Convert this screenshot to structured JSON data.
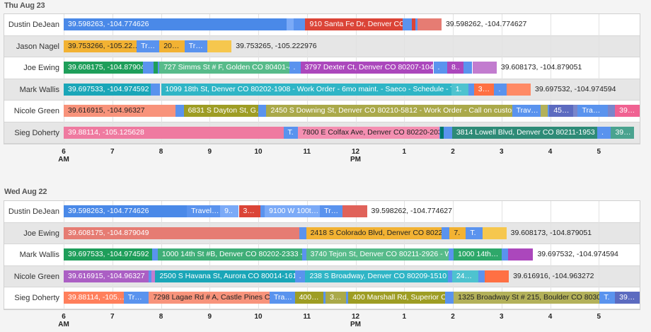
{
  "chart_data": [
    {
      "type": "timeline",
      "title": "Thu Aug 23",
      "x_ticks": [
        {
          "h": 6,
          "label": "6",
          "sub": "AM"
        },
        {
          "h": 7,
          "label": "7"
        },
        {
          "h": 8,
          "label": "8"
        },
        {
          "h": 9,
          "label": "9"
        },
        {
          "h": 10,
          "label": "10"
        },
        {
          "h": 11,
          "label": "11"
        },
        {
          "h": 12,
          "label": "12",
          "sub": "PM"
        },
        {
          "h": 13,
          "label": "1"
        },
        {
          "h": 14,
          "label": "2"
        },
        {
          "h": 15,
          "label": "3"
        },
        {
          "h": 16,
          "label": "4"
        },
        {
          "h": 17,
          "label": "5"
        }
      ],
      "rows": [
        {
          "name": "Dustin DeJean",
          "end_label": "39.598262, -104.774627",
          "segments": [
            [
              "06:00",
              "10:35",
              "#4a89e8",
              "39.598263, -104.774626"
            ],
            [
              "10:35",
              "10:44",
              "#7baaf7",
              ""
            ],
            [
              "10:44",
              "10:58",
              "#5a93ee",
              ""
            ],
            [
              "10:58",
              "12:58",
              "#db4437",
              "910 Santa Fe Dr, Denver CO…"
            ],
            [
              "12:58",
              "13:09",
              "#5a93ee",
              ""
            ],
            [
              "13:09",
              "13:14",
              "#db4437",
              ""
            ],
            [
              "13:14",
              "13:16",
              "#5a93ee",
              ""
            ],
            [
              "13:16",
              "13:46",
              "#e67c73",
              ""
            ]
          ]
        },
        {
          "name": "Jason Nagel",
          "end_label": "39.753265, -105.222976",
          "segments": [
            [
              "06:00",
              "07:30",
              "#f2b233",
              "39.753266, -105.22…"
            ],
            [
              "07:30",
              "07:58",
              "#5a93ee",
              "Tr…"
            ],
            [
              "07:58",
              "08:29",
              "#f2b233",
              "20…"
            ],
            [
              "08:29",
              "08:57",
              "#5a93ee",
              "Tr…"
            ],
            [
              "08:57",
              "09:27",
              "#f6c74e",
              ""
            ]
          ]
        },
        {
          "name": "Joe Ewing",
          "end_label": "39.608173, -104.879051",
          "segments": [
            [
              "06:00",
              "07:38",
              "#1e9e5a",
              "39.608175, -104.879049"
            ],
            [
              "07:38",
              "07:51",
              "#5a93ee",
              ""
            ],
            [
              "07:51",
              "07:56",
              "#1e9e5a",
              ""
            ],
            [
              "07:56",
              "07:58",
              "#5a93ee",
              ""
            ],
            [
              "07:58",
              "10:38",
              "#57bb8a",
              "727 Simms St # F, Golden CO 80401-47…"
            ],
            [
              "10:38",
              "10:52",
              "#5a93ee",
              "."
            ],
            [
              "10:52",
              "13:36",
              "#ab47bc",
              "3797 Dexter Ct, Denver CO 80207-1049 -…"
            ],
            [
              "13:36",
              "13:53",
              "#5a93ee",
              "."
            ],
            [
              "13:53",
              "14:13",
              "#ab47bc",
              "8.."
            ],
            [
              "14:13",
              "14:24",
              "#5a93ee",
              ""
            ],
            [
              "14:24",
              "14:54",
              "#c27ccf",
              ""
            ]
          ]
        },
        {
          "name": "Mark Wallis",
          "end_label": "39.697532, -104.974594",
          "segments": [
            [
              "06:00",
              "07:47",
              "#1aa6b8",
              "39.697533, -104.974592"
            ],
            [
              "07:47",
              "07:59",
              "#5a93ee",
              ""
            ],
            [
              "08:00",
              "13:58",
              "#2fb5c6",
              "1099 18th St, Denver CO 80202-1908 - Work Order - 6mo maint. - Saeco - Schedule - Thu Aug 2…"
            ],
            [
              "13:58",
              "14:19",
              "#4ec3cf",
              "1."
            ],
            [
              "14:19",
              "14:26",
              "#5a93ee",
              ""
            ],
            [
              "14:26",
              "14:51",
              "#ff7043",
              "3…"
            ],
            [
              "14:51",
              "15:06",
              "#5a93ee",
              "."
            ],
            [
              "15:06",
              "15:36",
              "#ff8a65",
              ""
            ]
          ]
        },
        {
          "name": "Nicole Green",
          "end_label": "",
          "segments": [
            [
              "06:00",
              "08:18",
              "#f8937b",
              "39.616915, -104.96327"
            ],
            [
              "08:18",
              "08:28",
              "#5a93ee",
              ""
            ],
            [
              "08:28",
              "10:00",
              "#9e9d24",
              "6831 S Dayton St, G…"
            ],
            [
              "10:00",
              "10:10",
              "#5a93ee",
              ""
            ],
            [
              "10:10",
              "15:13",
              "#aaa94a",
              "2450 S Downing St, Denver CO 80210-5812 - Work Order - Call on customer - Of…"
            ],
            [
              "15:13",
              "15:48",
              "#5a93ee",
              "Trav…"
            ],
            [
              "15:48",
              "15:57",
              "#b3b15a",
              ""
            ],
            [
              "15:57",
              "15:59",
              "#5a93ee",
              ""
            ],
            [
              "15:59",
              "16:28",
              "#5c6bc0",
              "45…"
            ],
            [
              "16:28",
              "16:34",
              "#7986cb",
              ""
            ],
            [
              "16:34",
              "17:11",
              "#5a93ee",
              "Tra…"
            ],
            [
              "17:11",
              "17:20",
              "#7986cb",
              ""
            ],
            [
              "17:20",
              "17:50",
              "#f06292",
              "39…"
            ]
          ]
        },
        {
          "name": "Sieg Doherty",
          "end_label": "",
          "segments": [
            [
              "06:00",
              "10:31",
              "#ef7aa0",
              "39.88114, -105.125628"
            ],
            [
              "10:31",
              "10:49",
              "#5a93ee",
              "T."
            ],
            [
              "10:49",
              "13:43",
              "#f48fb1",
              "7800 E Colfax Ave, Denver CO 80220-2031…"
            ],
            [
              "13:43",
              "13:44",
              "#5a93ee",
              ""
            ],
            [
              "13:44",
              "13:49",
              "#00796b",
              ""
            ],
            [
              "13:49",
              "13:59",
              "#5a93ee",
              ""
            ],
            [
              "13:59",
              "16:58",
              "#2e8b77",
              "3814 Lowell Blvd, Denver CO 80211-1953 -…"
            ],
            [
              "16:58",
              "17:15",
              "#5a93ee",
              "."
            ],
            [
              "17:15",
              "17:43",
              "#4aa38f",
              "39…"
            ]
          ]
        }
      ]
    },
    {
      "type": "timeline",
      "title": "Wed Aug 22",
      "x_ticks": [
        {
          "h": 6,
          "label": "6",
          "sub": "AM"
        },
        {
          "h": 7,
          "label": "7"
        },
        {
          "h": 8,
          "label": "8"
        },
        {
          "h": 9,
          "label": "9"
        },
        {
          "h": 10,
          "label": "10"
        },
        {
          "h": 11,
          "label": "11"
        },
        {
          "h": 12,
          "label": "12",
          "sub": "PM"
        },
        {
          "h": 13,
          "label": "1"
        },
        {
          "h": 14,
          "label": "2"
        },
        {
          "h": 15,
          "label": "3"
        },
        {
          "h": 16,
          "label": "4"
        },
        {
          "h": 17,
          "label": "5"
        }
      ],
      "rows": [
        {
          "name": "Dustin DeJean",
          "end_label": "39.598262, -104.774627",
          "segments": [
            [
              "06:00",
              "08:32",
              "#4a89e8",
              "39.598263, -104.774626"
            ],
            [
              "08:32",
              "09:13",
              "#5a93ee",
              "Travel…"
            ],
            [
              "09:13",
              "09:36",
              "#7baaf7",
              "9.."
            ],
            [
              "09:36",
              "10:03",
              "#db4437",
              "3…"
            ],
            [
              "10:03",
              "10:08",
              "#5a93ee",
              ""
            ],
            [
              "10:08",
              "11:16",
              "#7baaf7",
              "9100 W 100t…"
            ],
            [
              "11:16",
              "11:44",
              "#5a93ee",
              "Tr…"
            ],
            [
              "11:44",
              "12:14",
              "#e0625a",
              ""
            ]
          ]
        },
        {
          "name": "Joe Ewing",
          "end_label": "39.608173, -104.879051",
          "segments": [
            [
              "06:00",
              "10:51",
              "#e67c73",
              "39.608175, -104.879049"
            ],
            [
              "10:51",
              "10:59",
              "#5a93ee",
              ""
            ],
            [
              "10:59",
              "13:46",
              "#f2b233",
              "2418 S Colorado Blvd, Denver CO 80222-…"
            ],
            [
              "13:46",
              "13:56",
              "#5a93ee",
              ""
            ],
            [
              "13:56",
              "14:16",
              "#f2b233",
              "7."
            ],
            [
              "14:16",
              "14:37",
              "#5a93ee",
              "T."
            ],
            [
              "14:37",
              "15:06",
              "#f6c74e",
              ""
            ]
          ]
        },
        {
          "name": "Mark Wallis",
          "end_label": "39.697532, -104.974594",
          "segments": [
            [
              "06:00",
              "07:49",
              "#1e9e5a",
              "39.697533, -104.974592"
            ],
            [
              "07:49",
              "07:56",
              "#5a93ee",
              ""
            ],
            [
              "07:56",
              "10:54",
              "#3fae77",
              "1000 14th St #B, Denver CO 80202-2333 - W…"
            ],
            [
              "10:54",
              "10:59",
              "#5a93ee",
              ""
            ],
            [
              "10:59",
              "13:55",
              "#57bb8a",
              "3740 Tejon St, Denver CO 80211-2926 - Wo…"
            ],
            [
              "13:55",
              "14:01",
              "#5a93ee",
              ""
            ],
            [
              "14:01",
              "15:00",
              "#2ea86a",
              "1000 14th…"
            ],
            [
              "15:00",
              "15:08",
              "#5a93ee",
              ""
            ],
            [
              "15:08",
              "15:39",
              "#ab47bc",
              ""
            ]
          ]
        },
        {
          "name": "Nicole Green",
          "end_label": "39.616916, -104.963272",
          "segments": [
            [
              "06:00",
              "07:45",
              "#ab5fc4",
              "39.616915, -104.96327"
            ],
            [
              "07:45",
              "07:48",
              "#5a93ee",
              ""
            ],
            [
              "07:48",
              "07:53",
              "#c27ccf",
              ""
            ],
            [
              "07:53",
              "10:45",
              "#1aa6b8",
              "2500 S Havana St, Aurora CO 80014-1618…"
            ],
            [
              "10:45",
              "10:58",
              "#5a93ee",
              "."
            ],
            [
              "10:58",
              "13:54",
              "#2fb5c6",
              "238 S Broadway, Denver CO 80209-1510 -…"
            ],
            [
              "13:54",
              "13:59",
              "#5a93ee",
              ""
            ],
            [
              "13:59",
              "14:31",
              "#4ec3cf",
              "24…"
            ],
            [
              "14:31",
              "14:39",
              "#5a93ee",
              ""
            ],
            [
              "14:39",
              "15:09",
              "#ff7043",
              ""
            ]
          ]
        },
        {
          "name": "Sieg Doherty",
          "end_label": "",
          "segments": [
            [
              "06:00",
              "07:14",
              "#ff7f5c",
              "39.88114, -105.…"
            ],
            [
              "07:14",
              "07:45",
              "#5a93ee",
              "Tr…"
            ],
            [
              "07:45",
              "10:14",
              "#f8937b",
              "7298 Lagae Rd # A, Castle Pines C…"
            ],
            [
              "10:14",
              "10:45",
              "#5a93ee",
              "Tra…"
            ],
            [
              "10:45",
              "11:20",
              "#9e9d24",
              "400…"
            ],
            [
              "11:20",
              "11:23",
              "#5a93ee",
              ""
            ],
            [
              "11:23",
              "11:48",
              "#aaa94a",
              "3…"
            ],
            [
              "11:48",
              "11:51",
              "#5a93ee",
              ""
            ],
            [
              "11:51",
              "13:50",
              "#9e9d24",
              "400 Marshall Rd, Superior C…"
            ],
            [
              "13:50",
              "14:01",
              "#5a93ee",
              ""
            ],
            [
              "14:01",
              "17:01",
              "#b3b15a",
              "1325 Broadway St # 215, Boulder CO 80302-…"
            ],
            [
              "17:01",
              "17:20",
              "#5a93ee",
              "T."
            ],
            [
              "17:20",
              "17:50",
              "#5c6bc0",
              "39…"
            ]
          ]
        }
      ]
    }
  ]
}
